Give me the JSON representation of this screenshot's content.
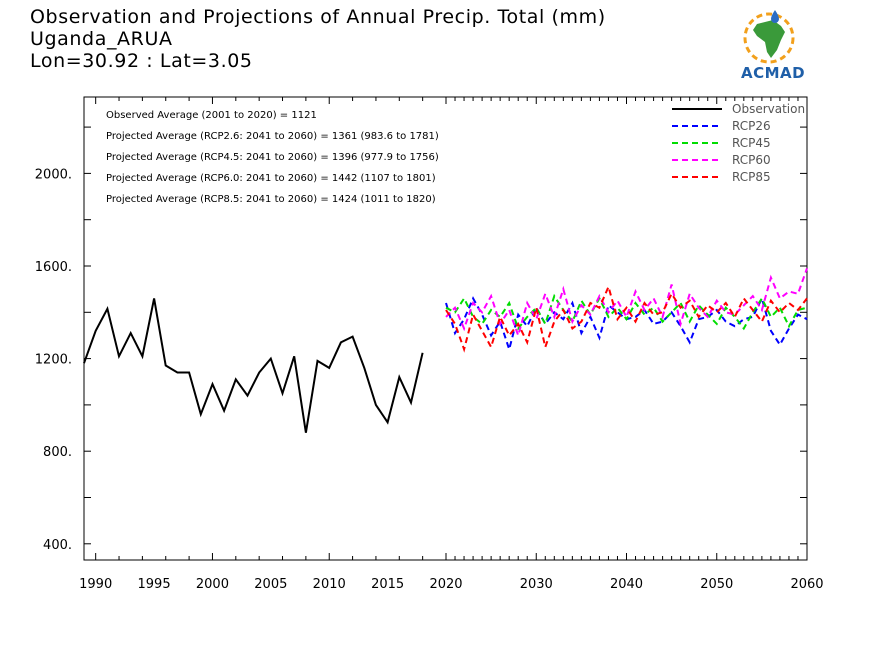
{
  "title": {
    "line1": "Observation and Projections of Annual Precip. Total (mm)",
    "line2": "Uganda_ARUA",
    "line3": "Lon=30.92 : Lat=3.05"
  },
  "logo": {
    "text": "ACMAD",
    "colors": {
      "ring": "#f2a01c",
      "africa": "#3a9a3a",
      "drop": "#2b6cc4",
      "text": "#1f5fa8"
    }
  },
  "stats": [
    "Observed Average (2001 to 2020) = 1121",
    "Projected Average (RCP2.6: 2041 to 2060) = 1361 (983.6 to 1781)",
    "Projected Average (RCP4.5: 2041 to 2060) = 1396 (977.9 to 1756)",
    "Projected Average (RCP6.0: 2041 to 2060) = 1442 (1107 to 1801)",
    "Projected Average (RCP8.5: 2041 to 2060) = 1424 (1011 to 1820)"
  ],
  "chart_data": {
    "type": "line",
    "ylim": [
      330,
      2330
    ],
    "y_ticks": [
      400,
      800,
      1200,
      1600,
      2000
    ],
    "y_tick_labels": [
      "400.",
      "800.",
      "1200.",
      "1600.",
      "2000."
    ],
    "x_ticks": [
      1990,
      1995,
      2000,
      2005,
      2010,
      2015,
      2020,
      2030,
      2040,
      2050,
      2060
    ],
    "x_tick_labels": [
      "1990",
      "1995",
      "2000",
      "2005",
      "2010",
      "2015",
      "2020",
      "2030",
      "2040",
      "2050",
      "2060"
    ],
    "axis_segments": [
      {
        "from": 1989,
        "to": 2020
      },
      {
        "from": 2020,
        "to": 2060
      }
    ],
    "legend_position": "top-right",
    "series": [
      {
        "name": "Observation",
        "color": "#000000",
        "dashed": false,
        "x": [
          1989,
          1990,
          1991,
          1992,
          1993,
          1994,
          1995,
          1996,
          1997,
          1998,
          1999,
          2000,
          2001,
          2002,
          2003,
          2004,
          2005,
          2006,
          2007,
          2008,
          2009,
          2010,
          2011,
          2012,
          2013,
          2014,
          2015,
          2016,
          2017,
          2018,
          2019,
          2020
        ],
        "values": [
          1180,
          1320,
          1415,
          1210,
          1310,
          1210,
          1460,
          1170,
          1140,
          1140,
          960,
          1090,
          975,
          1110,
          1040,
          1140,
          1200,
          1050,
          1210,
          880,
          1190,
          1160,
          1270,
          1295,
          1160,
          1000,
          925,
          1120,
          1010,
          1225,
          null,
          null
        ]
      },
      {
        "name": "RCP26",
        "color": "#0000ff",
        "dashed": true,
        "x": [
          2020,
          2021,
          2022,
          2023,
          2024,
          2025,
          2026,
          2027,
          2028,
          2029,
          2030,
          2031,
          2032,
          2033,
          2034,
          2035,
          2036,
          2037,
          2038,
          2039,
          2040,
          2041,
          2042,
          2043,
          2044,
          2045,
          2046,
          2047,
          2048,
          2049,
          2050,
          2051,
          2052,
          2053,
          2054,
          2055,
          2056,
          2057,
          2058,
          2059,
          2060
        ],
        "values": [
          1440,
          1310,
          1370,
          1460,
          1390,
          1300,
          1360,
          1240,
          1390,
          1340,
          1420,
          1350,
          1400,
          1370,
          1440,
          1310,
          1380,
          1290,
          1430,
          1400,
          1370,
          1380,
          1410,
          1350,
          1360,
          1400,
          1340,
          1270,
          1370,
          1380,
          1410,
          1360,
          1340,
          1370,
          1380,
          1460,
          1320,
          1260,
          1330,
          1390,
          1370
        ]
      },
      {
        "name": "RCP45",
        "color": "#00dd00",
        "dashed": true,
        "x": [
          2020,
          2021,
          2022,
          2023,
          2024,
          2025,
          2026,
          2027,
          2028,
          2029,
          2030,
          2031,
          2032,
          2033,
          2034,
          2035,
          2036,
          2037,
          2038,
          2039,
          2040,
          2041,
          2042,
          2043,
          2044,
          2045,
          2046,
          2047,
          2048,
          2049,
          2050,
          2051,
          2052,
          2053,
          2054,
          2055,
          2056,
          2057,
          2058,
          2059,
          2060
        ],
        "values": [
          1420,
          1400,
          1460,
          1380,
          1350,
          1410,
          1380,
          1440,
          1330,
          1380,
          1420,
          1350,
          1470,
          1410,
          1360,
          1450,
          1390,
          1460,
          1380,
          1420,
          1370,
          1440,
          1390,
          1420,
          1360,
          1400,
          1440,
          1360,
          1430,
          1390,
          1350,
          1420,
          1380,
          1330,
          1400,
          1460,
          1380,
          1420,
          1340,
          1410,
          1420
        ]
      },
      {
        "name": "RCP60",
        "color": "#ff00ff",
        "dashed": true,
        "x": [
          2020,
          2021,
          2022,
          2023,
          2024,
          2025,
          2026,
          2027,
          2028,
          2029,
          2030,
          2031,
          2032,
          2033,
          2034,
          2035,
          2036,
          2037,
          2038,
          2039,
          2040,
          2041,
          2042,
          2043,
          2044,
          2045,
          2046,
          2047,
          2048,
          2049,
          2050,
          2051,
          2052,
          2053,
          2054,
          2055,
          2056,
          2057,
          2058,
          2059,
          2060
        ],
        "values": [
          1380,
          1420,
          1330,
          1440,
          1400,
          1470,
          1350,
          1410,
          1300,
          1440,
          1370,
          1480,
          1380,
          1500,
          1360,
          1430,
          1390,
          1470,
          1400,
          1450,
          1380,
          1490,
          1410,
          1460,
          1380,
          1520,
          1350,
          1480,
          1420,
          1380,
          1450,
          1400,
          1390,
          1430,
          1470,
          1410,
          1550,
          1460,
          1490,
          1480,
          1590
        ]
      },
      {
        "name": "RCP85",
        "color": "#ff0000",
        "dashed": true,
        "x": [
          2020,
          2021,
          2022,
          2023,
          2024,
          2025,
          2026,
          2027,
          2028,
          2029,
          2030,
          2031,
          2032,
          2033,
          2034,
          2035,
          2036,
          2037,
          2038,
          2039,
          2040,
          2041,
          2042,
          2043,
          2044,
          2045,
          2046,
          2047,
          2048,
          2049,
          2050,
          2051,
          2052,
          2053,
          2054,
          2055,
          2056,
          2057,
          2058,
          2059,
          2060
        ],
        "values": [
          1410,
          1350,
          1240,
          1390,
          1320,
          1250,
          1380,
          1300,
          1350,
          1270,
          1420,
          1250,
          1360,
          1410,
          1330,
          1360,
          1440,
          1420,
          1510,
          1370,
          1420,
          1360,
          1440,
          1390,
          1400,
          1480,
          1420,
          1450,
          1380,
          1430,
          1400,
          1440,
          1380,
          1460,
          1410,
          1360,
          1450,
          1400,
          1440,
          1410,
          1460
        ]
      }
    ]
  }
}
